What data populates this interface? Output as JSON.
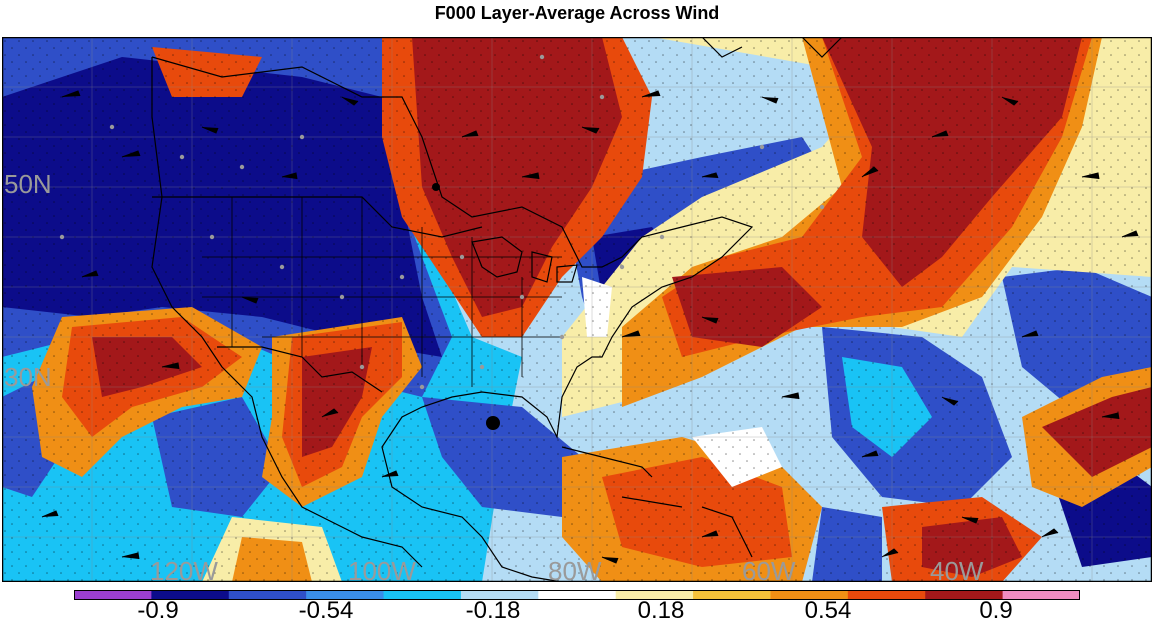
{
  "title": "F000 Layer-Average Across Wind",
  "map": {
    "lat_labels": [
      "50N",
      "30N"
    ],
    "lon_labels": [
      "120W",
      "100W",
      "80W",
      "60W",
      "40W"
    ],
    "label_color": "#9a9a9a",
    "storm_marker": "filled-circle"
  },
  "colorbar": {
    "colors": [
      "#9b3fd0",
      "#0c0c8a",
      "#2f4fc8",
      "#3a8ee8",
      "#19c3f5",
      "#b4dcf5",
      "#ffffff",
      "#f8eda8",
      "#f5c23a",
      "#f08f15",
      "#e84a0c",
      "#a3181a",
      "#f08cc0"
    ],
    "labels": [
      "-0.9",
      "-0.54",
      "-0.18",
      "0.18",
      "0.54",
      "0.9"
    ]
  }
}
